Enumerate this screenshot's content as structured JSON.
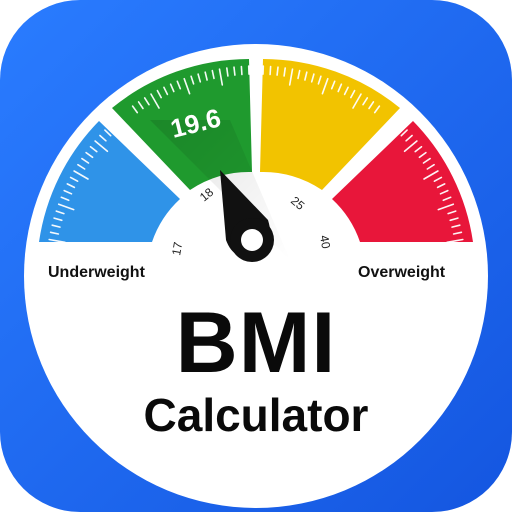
{
  "icon": {
    "reading": "19.6",
    "ticks": {
      "t17": "17",
      "t18": "18",
      "t25": "25",
      "t40": "40"
    },
    "left_label": "Underweight",
    "right_label": "Overweight",
    "title": "BMI",
    "subtitle": "Calculator"
  },
  "colors": {
    "background": "#1f6bf0",
    "underweight": "#2f93e8",
    "normal": "#1f9a2e",
    "overweight": "#f2c300",
    "obese": "#e8163a",
    "needle": "#111111"
  }
}
